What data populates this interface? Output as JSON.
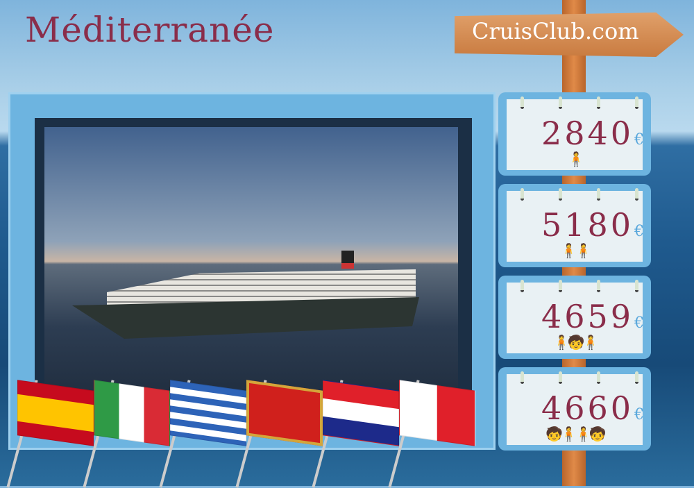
{
  "title": "Méditerranée",
  "brand": "CruisClub.com",
  "prices": [
    {
      "amount": "2840",
      "currency": "€",
      "icon": "single-person-icon",
      "people": "🧍"
    },
    {
      "amount": "5180",
      "currency": "€",
      "icon": "couple-icon",
      "people": "🧍🧍"
    },
    {
      "amount": "4659",
      "currency": "€",
      "icon": "family-one-child-icon",
      "people": "🧍🧒🧍"
    },
    {
      "amount": "4660",
      "currency": "€",
      "icon": "family-two-children-icon",
      "people": "🧒🧍🧍🧒"
    }
  ],
  "flags": [
    "Spain",
    "Italy",
    "Greece",
    "Montenegro",
    "Croatia",
    "Malta"
  ],
  "colors": {
    "title": "#8a2d4a",
    "frame": "#6db4e0",
    "euro": "#5aa8dc"
  }
}
